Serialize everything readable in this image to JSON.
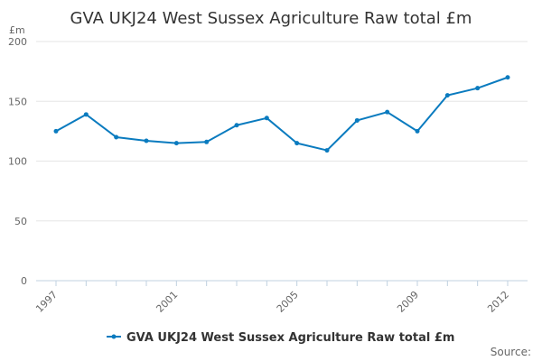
{
  "chart_data": {
    "type": "line",
    "title": "GVA UKJ24 West Sussex Agriculture Raw total £m",
    "unit_label": "£m",
    "xlabel": "",
    "ylabel": "",
    "x": [
      1997,
      1998,
      1999,
      2000,
      2001,
      2002,
      2003,
      2004,
      2005,
      2006,
      2007,
      2008,
      2009,
      2010,
      2011,
      2012
    ],
    "x_tick_labels": [
      "1997",
      "2001",
      "2005",
      "2009",
      "2012"
    ],
    "x_tick_values": [
      1997,
      2001,
      2005,
      2009,
      2012
    ],
    "ylim": [
      0,
      200
    ],
    "y_ticks": [
      0,
      50,
      100,
      150,
      200
    ],
    "grid": true,
    "legend_position": "bottom-center",
    "series": [
      {
        "name": "GVA UKJ24 West Sussex Agriculture Raw total £m",
        "color": "#0a7bbf",
        "values": [
          125,
          139,
          120,
          117,
          115,
          116,
          130,
          136,
          115,
          109,
          134,
          141,
          125,
          155,
          161,
          170
        ]
      }
    ]
  },
  "footer": {
    "source_label": "Source:"
  }
}
